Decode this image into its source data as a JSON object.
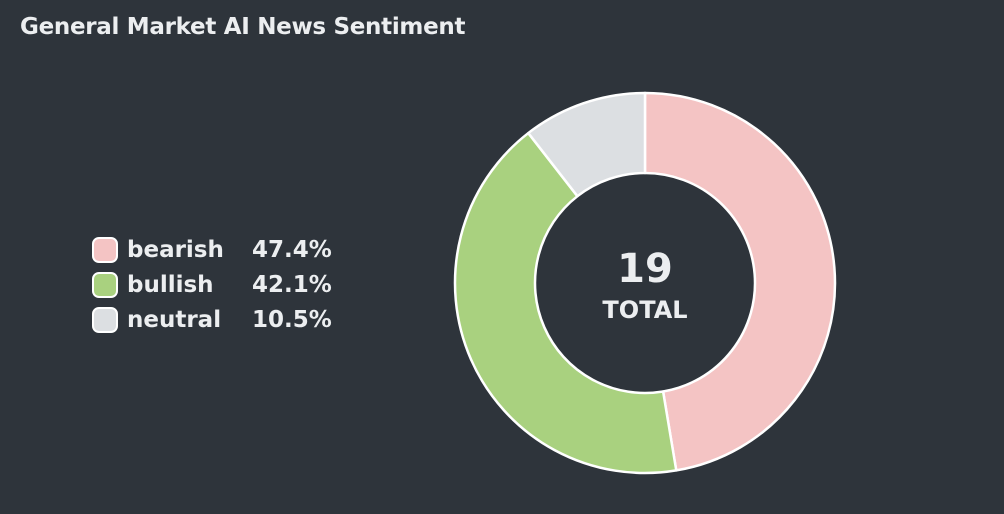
{
  "title": "General Market AI News Sentiment",
  "legend": [
    {
      "label": "bearish",
      "value": "47.4%"
    },
    {
      "label": "bullish",
      "value": "42.1%"
    },
    {
      "label": "neutral",
      "value": "10.5%"
    }
  ],
  "center": {
    "total": "19",
    "label": "TOTAL"
  },
  "chart_data": {
    "type": "pie",
    "title": "General Market AI News Sentiment",
    "categories": [
      "bearish",
      "bullish",
      "neutral"
    ],
    "values": [
      9,
      8,
      2
    ],
    "percentages": [
      47.4,
      42.1,
      10.5
    ],
    "total": 19,
    "colors": [
      "#f4c4c4",
      "#a9d17f",
      "#dcdfe2"
    ],
    "legend_position": "left"
  }
}
